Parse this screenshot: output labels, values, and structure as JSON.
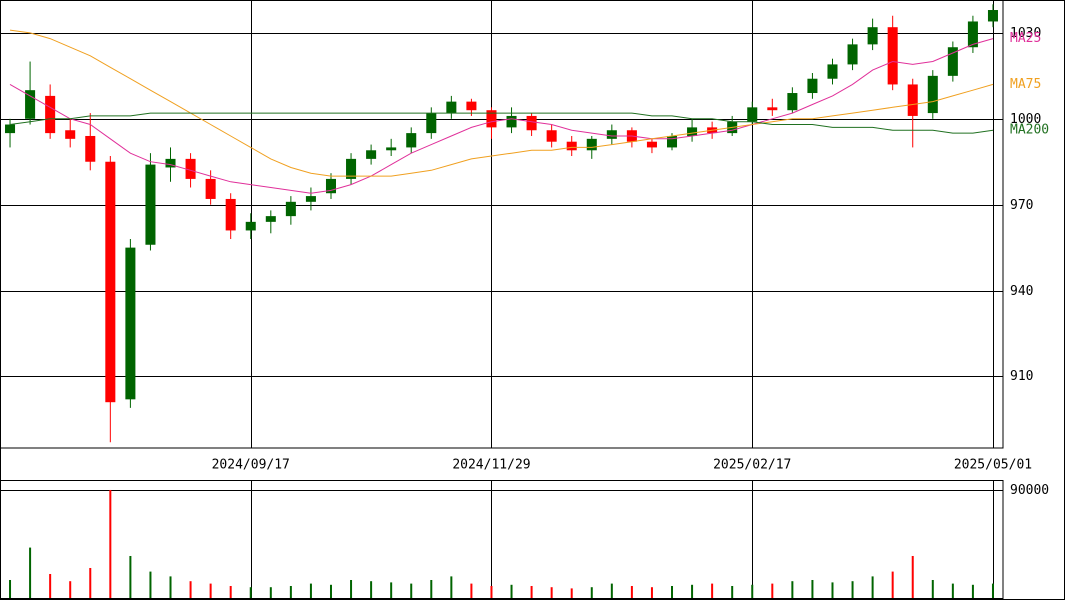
{
  "chart_data": [
    {
      "type": "candlestick",
      "categories": [
        null,
        null,
        null,
        null,
        null,
        null,
        null,
        null,
        null,
        null,
        null,
        null,
        "2024/09/17",
        null,
        null,
        null,
        null,
        null,
        null,
        null,
        null,
        null,
        null,
        null,
        "2024/11/29",
        null,
        null,
        null,
        null,
        null,
        null,
        null,
        null,
        null,
        null,
        null,
        null,
        "2025/02/17",
        null,
        null,
        null,
        null,
        null,
        null,
        null,
        null,
        null,
        null,
        null,
        "2025/05/01"
      ],
      "open": [
        995,
        1000,
        1008,
        996,
        994,
        985,
        902,
        956,
        983,
        986,
        979,
        972,
        961,
        964,
        966,
        971,
        974,
        979,
        986,
        989,
        990,
        995,
        1002,
        1006,
        1003,
        997,
        1001,
        996,
        992,
        989,
        993,
        996,
        992,
        990,
        994,
        997,
        995,
        999,
        1004,
        1003,
        1009,
        1014,
        1019,
        1026,
        1032,
        1012,
        1002,
        1015,
        1025,
        1034
      ],
      "high": [
        1000,
        1020,
        1012,
        1000,
        1002,
        987,
        958,
        988,
        990,
        988,
        982,
        974,
        967,
        968,
        973,
        976,
        981,
        988,
        991,
        993,
        997,
        1004,
        1008,
        1007,
        1004,
        1004,
        1002,
        998,
        994,
        994,
        998,
        997,
        993,
        995,
        1000,
        999,
        1001,
        1006,
        1007,
        1011,
        1016,
        1021,
        1028,
        1035,
        1036,
        1014,
        1017,
        1027,
        1036,
        1040
      ],
      "low": [
        990,
        998,
        993,
        990,
        982,
        887,
        899,
        954,
        978,
        976,
        970,
        958,
        958,
        960,
        963,
        968,
        972,
        977,
        984,
        987,
        988,
        993,
        1000,
        1001,
        993,
        995,
        994,
        990,
        987,
        986,
        991,
        990,
        988,
        989,
        992,
        993,
        994,
        998,
        1001,
        1002,
        1007,
        1012,
        1017,
        1024,
        1010,
        990,
        1000,
        1013,
        1023,
        1032
      ],
      "close": [
        998,
        1010,
        995,
        993,
        985,
        901,
        955,
        984,
        986,
        979,
        972,
        961,
        964,
        966,
        971,
        973,
        979,
        986,
        989,
        990,
        995,
        1002,
        1006,
        1003,
        997,
        1001,
        996,
        992,
        989,
        993,
        996,
        992,
        990,
        994,
        997,
        995,
        999,
        1004,
        1003,
        1009,
        1014,
        1019,
        1026,
        1032,
        1012,
        1001,
        1015,
        1025,
        1034,
        1038
      ],
      "up_color": "#006400",
      "down_color": "#ff0000",
      "series": [
        {
          "name": "MA25",
          "color": "#e0309a",
          "values": [
            1012,
            1008,
            1004,
            1000,
            998,
            993,
            988,
            985,
            984,
            982,
            980,
            978,
            977,
            976,
            975,
            974,
            975,
            977,
            980,
            984,
            988,
            991,
            994,
            997,
            999,
            1000,
            999,
            998,
            996,
            995,
            994,
            994,
            993,
            993,
            994,
            995,
            996,
            998,
            1000,
            1002,
            1005,
            1008,
            1012,
            1017,
            1020,
            1019,
            1020,
            1023,
            1026,
            1028
          ]
        },
        {
          "name": "MA75",
          "color": "#f0a020",
          "values": [
            1031,
            1030,
            1028,
            1025,
            1022,
            1018,
            1014,
            1010,
            1006,
            1002,
            998,
            994,
            990,
            986,
            983,
            981,
            980,
            980,
            980,
            980,
            981,
            982,
            984,
            986,
            987,
            988,
            989,
            989,
            990,
            990,
            991,
            992,
            993,
            994,
            995,
            996,
            997,
            998,
            999,
            1000,
            1000,
            1001,
            1002,
            1003,
            1004,
            1005,
            1006,
            1008,
            1010,
            1012
          ]
        },
        {
          "name": "MA200",
          "color": "#207020",
          "values": [
            998,
            999,
            1000,
            1000,
            1001,
            1001,
            1001,
            1002,
            1002,
            1002,
            1002,
            1002,
            1002,
            1002,
            1002,
            1002,
            1002,
            1002,
            1002,
            1002,
            1002,
            1002,
            1002,
            1002,
            1002,
            1002,
            1002,
            1002,
            1002,
            1002,
            1002,
            1002,
            1001,
            1001,
            1000,
            1000,
            999,
            999,
            998,
            998,
            998,
            997,
            997,
            997,
            996,
            996,
            996,
            995,
            995,
            996
          ]
        }
      ],
      "ylim": [
        885,
        1041.5
      ],
      "yticks": [
        910,
        940,
        970,
        1000,
        1030
      ],
      "grid": true
    },
    {
      "type": "bar",
      "values": [
        15000,
        42000,
        20000,
        14000,
        25000,
        90000,
        35000,
        22000,
        18000,
        14000,
        12000,
        10000,
        9000,
        9000,
        10000,
        12000,
        11000,
        15000,
        14000,
        13000,
        12000,
        15000,
        18000,
        12000,
        10000,
        11000,
        10000,
        9000,
        8000,
        9000,
        12000,
        10000,
        9000,
        10000,
        11000,
        12000,
        10000,
        11000,
        12000,
        14000,
        15000,
        13000,
        14000,
        18000,
        22000,
        35000,
        15000,
        12000,
        11000,
        12000
      ],
      "ylim": [
        0,
        98300
      ],
      "yticks": [
        90000
      ],
      "grid": true
    }
  ]
}
